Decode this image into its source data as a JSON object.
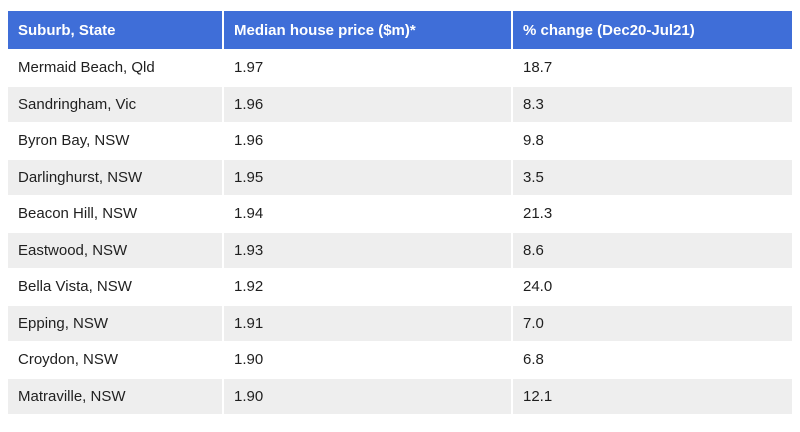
{
  "table": {
    "headers": [
      "Suburb, State",
      "Median house price ($m)*",
      "% change (Dec20-Jul21)"
    ],
    "rows": [
      [
        "Mermaid Beach, Qld",
        "1.97",
        "18.7"
      ],
      [
        "Sandringham, Vic",
        "1.96",
        "8.3"
      ],
      [
        "Byron Bay, NSW",
        "1.96",
        "9.8"
      ],
      [
        "Darlinghurst, NSW",
        "1.95",
        "3.5"
      ],
      [
        "Beacon Hill, NSW",
        "1.94",
        "21.3"
      ],
      [
        "Eastwood, NSW",
        "1.93",
        "8.6"
      ],
      [
        "Bella Vista, NSW",
        "1.92",
        "24.0"
      ],
      [
        "Epping, NSW",
        "1.91",
        "7.0"
      ],
      [
        "Croydon, NSW",
        "1.90",
        "6.8"
      ],
      [
        "Matraville, NSW",
        "1.90",
        "12.1"
      ]
    ]
  },
  "colors": {
    "header_bg": "#3f6ed8",
    "header_text": "#ffffff",
    "row_stripe": "#eeeeee"
  }
}
